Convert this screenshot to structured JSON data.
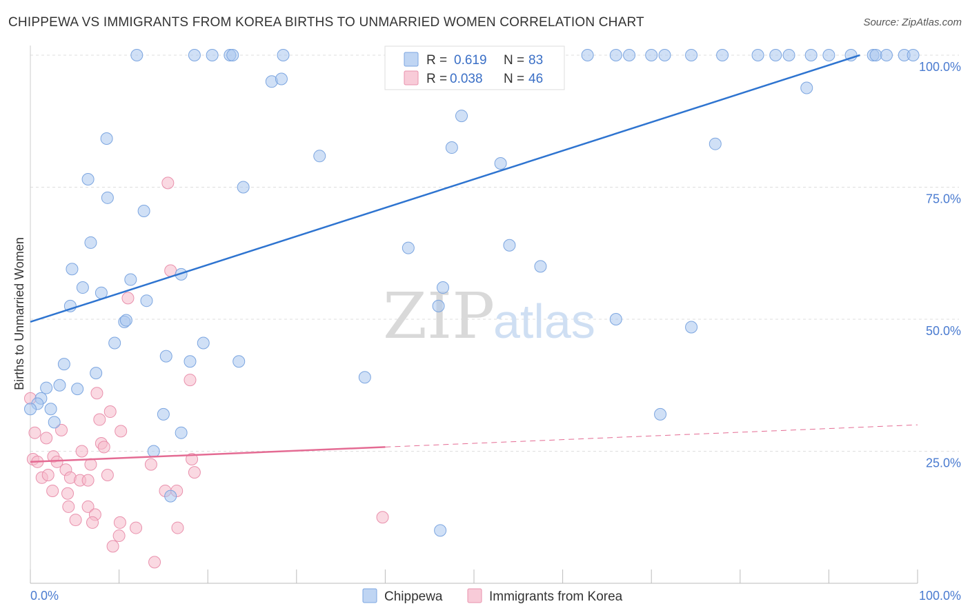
{
  "title": "CHIPPEWA VS IMMIGRANTS FROM KOREA BIRTHS TO UNMARRIED WOMEN CORRELATION CHART",
  "source": "Source: ZipAtlas.com",
  "watermark": {
    "zip": "ZIP",
    "atlas": "atlas"
  },
  "legend": {
    "r_label": "R =",
    "n_label": "N =",
    "entries": [
      {
        "r": "0.619",
        "n": "83",
        "color": "#a9c7ef"
      },
      {
        "r": "0.038",
        "n": "46",
        "color": "#f6b9cb"
      }
    ]
  },
  "bottom_legend": [
    {
      "label": "Chippewa",
      "color": "#a9c7ef"
    },
    {
      "label": "Immigrants from Korea",
      "color": "#f6b9cb"
    }
  ],
  "colors": {
    "blue_point": "#a9c7ef",
    "blue_edge": "#7ba5e0",
    "blue_line": "#2e74d0",
    "pink_point": "#f6b9cb",
    "pink_edge": "#e990ac",
    "pink_line": "#e46b93",
    "grid": "#dddddd",
    "axis_label": "#4a7bd0"
  },
  "chart_data": {
    "type": "scatter",
    "title": "CHIPPEWA VS IMMIGRANTS FROM KOREA BIRTHS TO UNMARRIED WOMEN CORRELATION CHART",
    "xlabel": "",
    "ylabel": "Births to Unmarried Women",
    "xlim": [
      0,
      100
    ],
    "ylim": [
      0,
      100
    ],
    "x_tick_labels": [
      "0.0%",
      "100.0%"
    ],
    "y_tick_labels": [
      {
        "value": 25,
        "label": "25.0%"
      },
      {
        "value": 50,
        "label": "50.0%"
      },
      {
        "value": 75,
        "label": "75.0%"
      },
      {
        "value": 100,
        "label": "100.0%"
      }
    ],
    "grid": true,
    "series": [
      {
        "name": "Chippewa",
        "points": [
          [
            12.0,
            100
          ],
          [
            18.5,
            100
          ],
          [
            20.5,
            100
          ],
          [
            22.5,
            100
          ],
          [
            22.8,
            100
          ],
          [
            28.5,
            100
          ],
          [
            41.5,
            100
          ],
          [
            50.3,
            100
          ],
          [
            52.0,
            100
          ],
          [
            62.8,
            100
          ],
          [
            66.0,
            100
          ],
          [
            67.5,
            100
          ],
          [
            70.0,
            100
          ],
          [
            71.5,
            100
          ],
          [
            74.5,
            100
          ],
          [
            78.0,
            100
          ],
          [
            82.0,
            100
          ],
          [
            84.0,
            100
          ],
          [
            85.5,
            100
          ],
          [
            88.0,
            100
          ],
          [
            90.0,
            100
          ],
          [
            92.5,
            100
          ],
          [
            95.0,
            100
          ],
          [
            95.3,
            100
          ],
          [
            96.5,
            100
          ],
          [
            98.5,
            100
          ],
          [
            99.5,
            100
          ],
          [
            27.2,
            95.0
          ],
          [
            28.3,
            95.5
          ],
          [
            87.5,
            93.8
          ],
          [
            48.6,
            88.5
          ],
          [
            8.6,
            84.2
          ],
          [
            47.5,
            82.5
          ],
          [
            77.2,
            83.2
          ],
          [
            32.6,
            80.9
          ],
          [
            53.0,
            79.5
          ],
          [
            6.5,
            76.5
          ],
          [
            24.0,
            75.0
          ],
          [
            8.7,
            73.0
          ],
          [
            12.8,
            70.5
          ],
          [
            6.8,
            64.5
          ],
          [
            42.6,
            63.5
          ],
          [
            54.0,
            64.0
          ],
          [
            57.5,
            60.0
          ],
          [
            4.7,
            59.5
          ],
          [
            17.0,
            58.5
          ],
          [
            11.3,
            57.5
          ],
          [
            5.9,
            56.0
          ],
          [
            46.5,
            56.0
          ],
          [
            8.0,
            55.0
          ],
          [
            13.1,
            53.5
          ],
          [
            4.5,
            52.5
          ],
          [
            46.0,
            52.5
          ],
          [
            10.6,
            49.5
          ],
          [
            10.8,
            49.8
          ],
          [
            66.0,
            50.0
          ],
          [
            74.5,
            48.5
          ],
          [
            9.5,
            45.5
          ],
          [
            19.5,
            45.5
          ],
          [
            3.8,
            41.5
          ],
          [
            15.3,
            43.0
          ],
          [
            18.0,
            42.0
          ],
          [
            23.5,
            42.0
          ],
          [
            7.4,
            39.8
          ],
          [
            37.7,
            39.0
          ],
          [
            1.8,
            37.0
          ],
          [
            3.3,
            37.5
          ],
          [
            5.3,
            36.8
          ],
          [
            1.2,
            35.0
          ],
          [
            0.8,
            34.0
          ],
          [
            0.0,
            33.0
          ],
          [
            2.3,
            33.0
          ],
          [
            15.0,
            32.0
          ],
          [
            71.0,
            32.0
          ],
          [
            2.7,
            30.5
          ],
          [
            17.0,
            28.5
          ],
          [
            13.9,
            25.0
          ],
          [
            15.8,
            16.5
          ],
          [
            46.2,
            10.0
          ]
        ]
      },
      {
        "name": "Immigrants from Korea",
        "points": [
          [
            15.5,
            75.8
          ],
          [
            15.8,
            59.2
          ],
          [
            11.0,
            54.0
          ],
          [
            18.0,
            38.5
          ],
          [
            7.5,
            36.0
          ],
          [
            9.0,
            32.5
          ],
          [
            7.8,
            31.0
          ],
          [
            0.0,
            35.0
          ],
          [
            0.5,
            28.5
          ],
          [
            3.5,
            29.0
          ],
          [
            1.8,
            27.5
          ],
          [
            10.2,
            28.8
          ],
          [
            8.0,
            26.5
          ],
          [
            8.3,
            25.8
          ],
          [
            5.8,
            25.0
          ],
          [
            2.6,
            24.0
          ],
          [
            0.3,
            23.5
          ],
          [
            0.8,
            23.0
          ],
          [
            3.0,
            23.0
          ],
          [
            6.8,
            22.5
          ],
          [
            13.6,
            22.5
          ],
          [
            18.2,
            23.5
          ],
          [
            4.0,
            21.5
          ],
          [
            18.5,
            21.0
          ],
          [
            8.7,
            20.5
          ],
          [
            1.3,
            20.0
          ],
          [
            2.0,
            20.5
          ],
          [
            4.5,
            20.0
          ],
          [
            5.6,
            19.5
          ],
          [
            6.5,
            19.5
          ],
          [
            2.5,
            17.5
          ],
          [
            4.2,
            17.0
          ],
          [
            15.2,
            17.5
          ],
          [
            16.5,
            17.5
          ],
          [
            4.3,
            14.5
          ],
          [
            6.5,
            14.5
          ],
          [
            7.3,
            13.0
          ],
          [
            5.1,
            12.0
          ],
          [
            7.0,
            11.5
          ],
          [
            10.1,
            11.5
          ],
          [
            11.9,
            10.5
          ],
          [
            16.6,
            10.5
          ],
          [
            39.7,
            12.5
          ],
          [
            10.0,
            9.0
          ],
          [
            9.3,
            7.0
          ],
          [
            14.0,
            4.0
          ]
        ]
      }
    ],
    "trend_lines": [
      {
        "series": "Chippewa",
        "x": [
          0,
          93.5
        ],
        "y": [
          49.5,
          100
        ],
        "style": "solid"
      },
      {
        "series": "Immigrants from Korea",
        "x": [
          0,
          40
        ],
        "y": [
          23.0,
          25.8
        ],
        "style": "solid"
      },
      {
        "series": "Immigrants from Korea",
        "x": [
          40,
          100
        ],
        "y": [
          25.8,
          30.0
        ],
        "style": "dashed"
      }
    ]
  }
}
